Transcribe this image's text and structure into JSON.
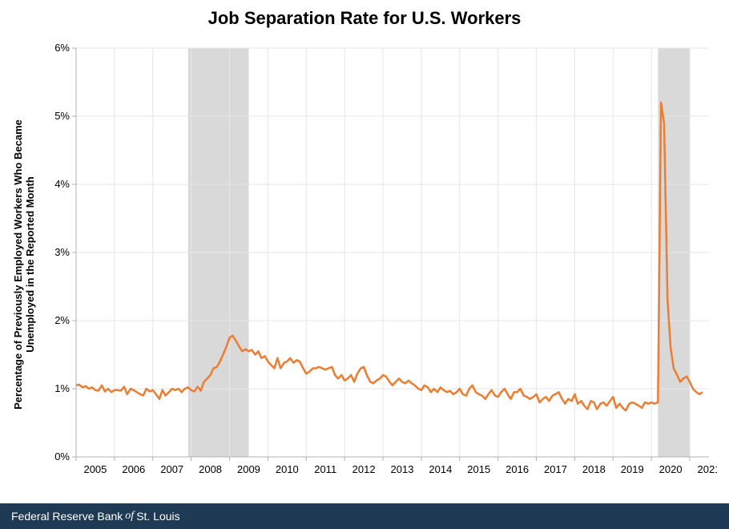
{
  "chart": {
    "type": "line",
    "title": "Job Separation Rate for U.S. Workers",
    "title_fontsize": 22,
    "ylabel": "Percentage of Previously Employed Workers Who Became\nUnemployed in the Reported Month",
    "ylabel_fontsize": 13,
    "ylim": [
      0,
      6
    ],
    "ytick_step": 1,
    "ytick_suffix": "%",
    "xlim": [
      2005,
      2021.5
    ],
    "xtick_start": 2005,
    "xtick_end": 2021,
    "xtick_step": 1,
    "tick_fontsize": 13,
    "background_color": "#ffffff",
    "grid_color": "#e6e6e6",
    "axis_color": "#b0b0b0",
    "line_color": "#ed7d31",
    "line_width": 2.5,
    "recession_band_color": "#d9d9d9",
    "recession_bands": [
      {
        "start": 2007.92,
        "end": 2009.5
      },
      {
        "start": 2020.17,
        "end": 2021.0
      }
    ],
    "series": [
      {
        "x": 2005.0,
        "y": 1.05
      },
      {
        "x": 2005.08,
        "y": 1.06
      },
      {
        "x": 2005.17,
        "y": 1.02
      },
      {
        "x": 2005.25,
        "y": 1.04
      },
      {
        "x": 2005.33,
        "y": 1.0
      },
      {
        "x": 2005.42,
        "y": 1.02
      },
      {
        "x": 2005.5,
        "y": 0.98
      },
      {
        "x": 2005.58,
        "y": 0.97
      },
      {
        "x": 2005.67,
        "y": 1.05
      },
      {
        "x": 2005.75,
        "y": 0.96
      },
      {
        "x": 2005.83,
        "y": 1.0
      },
      {
        "x": 2005.92,
        "y": 0.95
      },
      {
        "x": 2006.0,
        "y": 0.98
      },
      {
        "x": 2006.08,
        "y": 0.98
      },
      {
        "x": 2006.17,
        "y": 0.97
      },
      {
        "x": 2006.25,
        "y": 1.03
      },
      {
        "x": 2006.33,
        "y": 0.92
      },
      {
        "x": 2006.42,
        "y": 1.0
      },
      {
        "x": 2006.5,
        "y": 0.98
      },
      {
        "x": 2006.58,
        "y": 0.95
      },
      {
        "x": 2006.67,
        "y": 0.92
      },
      {
        "x": 2006.75,
        "y": 0.9
      },
      {
        "x": 2006.83,
        "y": 1.0
      },
      {
        "x": 2006.92,
        "y": 0.96
      },
      {
        "x": 2007.0,
        "y": 0.98
      },
      {
        "x": 2007.08,
        "y": 0.92
      },
      {
        "x": 2007.17,
        "y": 0.85
      },
      {
        "x": 2007.25,
        "y": 0.98
      },
      {
        "x": 2007.33,
        "y": 0.9
      },
      {
        "x": 2007.42,
        "y": 0.95
      },
      {
        "x": 2007.5,
        "y": 1.0
      },
      {
        "x": 2007.58,
        "y": 0.98
      },
      {
        "x": 2007.67,
        "y": 1.0
      },
      {
        "x": 2007.75,
        "y": 0.95
      },
      {
        "x": 2007.83,
        "y": 1.0
      },
      {
        "x": 2007.92,
        "y": 1.02
      },
      {
        "x": 2008.0,
        "y": 0.98
      },
      {
        "x": 2008.08,
        "y": 0.96
      },
      {
        "x": 2008.17,
        "y": 1.03
      },
      {
        "x": 2008.25,
        "y": 0.97
      },
      {
        "x": 2008.33,
        "y": 1.1
      },
      {
        "x": 2008.42,
        "y": 1.15
      },
      {
        "x": 2008.5,
        "y": 1.2
      },
      {
        "x": 2008.58,
        "y": 1.3
      },
      {
        "x": 2008.67,
        "y": 1.32
      },
      {
        "x": 2008.75,
        "y": 1.4
      },
      {
        "x": 2008.83,
        "y": 1.5
      },
      {
        "x": 2008.92,
        "y": 1.62
      },
      {
        "x": 2009.0,
        "y": 1.75
      },
      {
        "x": 2009.08,
        "y": 1.78
      },
      {
        "x": 2009.17,
        "y": 1.7
      },
      {
        "x": 2009.25,
        "y": 1.62
      },
      {
        "x": 2009.33,
        "y": 1.55
      },
      {
        "x": 2009.42,
        "y": 1.58
      },
      {
        "x": 2009.5,
        "y": 1.55
      },
      {
        "x": 2009.58,
        "y": 1.57
      },
      {
        "x": 2009.67,
        "y": 1.5
      },
      {
        "x": 2009.75,
        "y": 1.55
      },
      {
        "x": 2009.83,
        "y": 1.45
      },
      {
        "x": 2009.92,
        "y": 1.48
      },
      {
        "x": 2010.0,
        "y": 1.4
      },
      {
        "x": 2010.08,
        "y": 1.35
      },
      {
        "x": 2010.17,
        "y": 1.3
      },
      {
        "x": 2010.25,
        "y": 1.45
      },
      {
        "x": 2010.33,
        "y": 1.3
      },
      {
        "x": 2010.42,
        "y": 1.38
      },
      {
        "x": 2010.5,
        "y": 1.4
      },
      {
        "x": 2010.58,
        "y": 1.45
      },
      {
        "x": 2010.67,
        "y": 1.38
      },
      {
        "x": 2010.75,
        "y": 1.42
      },
      {
        "x": 2010.83,
        "y": 1.4
      },
      {
        "x": 2010.92,
        "y": 1.3
      },
      {
        "x": 2011.0,
        "y": 1.22
      },
      {
        "x": 2011.08,
        "y": 1.25
      },
      {
        "x": 2011.17,
        "y": 1.3
      },
      {
        "x": 2011.25,
        "y": 1.3
      },
      {
        "x": 2011.33,
        "y": 1.32
      },
      {
        "x": 2011.42,
        "y": 1.3
      },
      {
        "x": 2011.5,
        "y": 1.28
      },
      {
        "x": 2011.58,
        "y": 1.3
      },
      {
        "x": 2011.67,
        "y": 1.32
      },
      {
        "x": 2011.75,
        "y": 1.2
      },
      {
        "x": 2011.83,
        "y": 1.15
      },
      {
        "x": 2011.92,
        "y": 1.2
      },
      {
        "x": 2012.0,
        "y": 1.12
      },
      {
        "x": 2012.08,
        "y": 1.15
      },
      {
        "x": 2012.17,
        "y": 1.2
      },
      {
        "x": 2012.25,
        "y": 1.1
      },
      {
        "x": 2012.33,
        "y": 1.22
      },
      {
        "x": 2012.42,
        "y": 1.3
      },
      {
        "x": 2012.5,
        "y": 1.32
      },
      {
        "x": 2012.58,
        "y": 1.2
      },
      {
        "x": 2012.67,
        "y": 1.1
      },
      {
        "x": 2012.75,
        "y": 1.08
      },
      {
        "x": 2012.83,
        "y": 1.12
      },
      {
        "x": 2012.92,
        "y": 1.15
      },
      {
        "x": 2013.0,
        "y": 1.2
      },
      {
        "x": 2013.08,
        "y": 1.18
      },
      {
        "x": 2013.17,
        "y": 1.1
      },
      {
        "x": 2013.25,
        "y": 1.05
      },
      {
        "x": 2013.33,
        "y": 1.1
      },
      {
        "x": 2013.42,
        "y": 1.15
      },
      {
        "x": 2013.5,
        "y": 1.1
      },
      {
        "x": 2013.58,
        "y": 1.08
      },
      {
        "x": 2013.67,
        "y": 1.12
      },
      {
        "x": 2013.75,
        "y": 1.08
      },
      {
        "x": 2013.83,
        "y": 1.05
      },
      {
        "x": 2013.92,
        "y": 1.0
      },
      {
        "x": 2014.0,
        "y": 0.98
      },
      {
        "x": 2014.08,
        "y": 1.05
      },
      {
        "x": 2014.17,
        "y": 1.02
      },
      {
        "x": 2014.25,
        "y": 0.95
      },
      {
        "x": 2014.33,
        "y": 1.0
      },
      {
        "x": 2014.42,
        "y": 0.95
      },
      {
        "x": 2014.5,
        "y": 1.02
      },
      {
        "x": 2014.58,
        "y": 0.98
      },
      {
        "x": 2014.67,
        "y": 0.95
      },
      {
        "x": 2014.75,
        "y": 0.97
      },
      {
        "x": 2014.83,
        "y": 0.92
      },
      {
        "x": 2014.92,
        "y": 0.95
      },
      {
        "x": 2015.0,
        "y": 1.0
      },
      {
        "x": 2015.08,
        "y": 0.92
      },
      {
        "x": 2015.17,
        "y": 0.9
      },
      {
        "x": 2015.25,
        "y": 1.0
      },
      {
        "x": 2015.33,
        "y": 1.05
      },
      {
        "x": 2015.42,
        "y": 0.95
      },
      {
        "x": 2015.5,
        "y": 0.92
      },
      {
        "x": 2015.58,
        "y": 0.9
      },
      {
        "x": 2015.67,
        "y": 0.85
      },
      {
        "x": 2015.75,
        "y": 0.92
      },
      {
        "x": 2015.83,
        "y": 0.98
      },
      {
        "x": 2015.92,
        "y": 0.9
      },
      {
        "x": 2016.0,
        "y": 0.88
      },
      {
        "x": 2016.08,
        "y": 0.95
      },
      {
        "x": 2016.17,
        "y": 1.0
      },
      {
        "x": 2016.25,
        "y": 0.92
      },
      {
        "x": 2016.33,
        "y": 0.85
      },
      {
        "x": 2016.42,
        "y": 0.95
      },
      {
        "x": 2016.5,
        "y": 0.95
      },
      {
        "x": 2016.58,
        "y": 1.0
      },
      {
        "x": 2016.67,
        "y": 0.9
      },
      {
        "x": 2016.75,
        "y": 0.88
      },
      {
        "x": 2016.83,
        "y": 0.85
      },
      {
        "x": 2016.92,
        "y": 0.88
      },
      {
        "x": 2017.0,
        "y": 0.92
      },
      {
        "x": 2017.08,
        "y": 0.8
      },
      {
        "x": 2017.17,
        "y": 0.85
      },
      {
        "x": 2017.25,
        "y": 0.88
      },
      {
        "x": 2017.33,
        "y": 0.82
      },
      {
        "x": 2017.42,
        "y": 0.9
      },
      {
        "x": 2017.5,
        "y": 0.92
      },
      {
        "x": 2017.58,
        "y": 0.95
      },
      {
        "x": 2017.67,
        "y": 0.85
      },
      {
        "x": 2017.75,
        "y": 0.78
      },
      {
        "x": 2017.83,
        "y": 0.85
      },
      {
        "x": 2017.92,
        "y": 0.82
      },
      {
        "x": 2018.0,
        "y": 0.92
      },
      {
        "x": 2018.08,
        "y": 0.78
      },
      {
        "x": 2018.17,
        "y": 0.82
      },
      {
        "x": 2018.25,
        "y": 0.75
      },
      {
        "x": 2018.33,
        "y": 0.7
      },
      {
        "x": 2018.42,
        "y": 0.82
      },
      {
        "x": 2018.5,
        "y": 0.8
      },
      {
        "x": 2018.58,
        "y": 0.7
      },
      {
        "x": 2018.67,
        "y": 0.78
      },
      {
        "x": 2018.75,
        "y": 0.8
      },
      {
        "x": 2018.83,
        "y": 0.75
      },
      {
        "x": 2018.92,
        "y": 0.82
      },
      {
        "x": 2019.0,
        "y": 0.88
      },
      {
        "x": 2019.08,
        "y": 0.72
      },
      {
        "x": 2019.17,
        "y": 0.78
      },
      {
        "x": 2019.25,
        "y": 0.72
      },
      {
        "x": 2019.33,
        "y": 0.68
      },
      {
        "x": 2019.42,
        "y": 0.78
      },
      {
        "x": 2019.5,
        "y": 0.8
      },
      {
        "x": 2019.58,
        "y": 0.78
      },
      {
        "x": 2019.67,
        "y": 0.75
      },
      {
        "x": 2019.75,
        "y": 0.72
      },
      {
        "x": 2019.83,
        "y": 0.8
      },
      {
        "x": 2019.92,
        "y": 0.78
      },
      {
        "x": 2020.0,
        "y": 0.8
      },
      {
        "x": 2020.08,
        "y": 0.78
      },
      {
        "x": 2020.17,
        "y": 0.8
      },
      {
        "x": 2020.25,
        "y": 5.2
      },
      {
        "x": 2020.33,
        "y": 4.9
      },
      {
        "x": 2020.42,
        "y": 2.3
      },
      {
        "x": 2020.5,
        "y": 1.6
      },
      {
        "x": 2020.58,
        "y": 1.3
      },
      {
        "x": 2020.67,
        "y": 1.2
      },
      {
        "x": 2020.75,
        "y": 1.1
      },
      {
        "x": 2020.83,
        "y": 1.15
      },
      {
        "x": 2020.92,
        "y": 1.18
      },
      {
        "x": 2021.0,
        "y": 1.1
      },
      {
        "x": 2021.08,
        "y": 1.0
      },
      {
        "x": 2021.17,
        "y": 0.95
      },
      {
        "x": 2021.25,
        "y": 0.92
      },
      {
        "x": 2021.33,
        "y": 0.95
      }
    ]
  },
  "footer": {
    "prefix": "Federal Reserve Bank ",
    "of": "of",
    "suffix": " St. Louis",
    "bg_color": "#1f3a54",
    "text_color": "#ffffff"
  }
}
